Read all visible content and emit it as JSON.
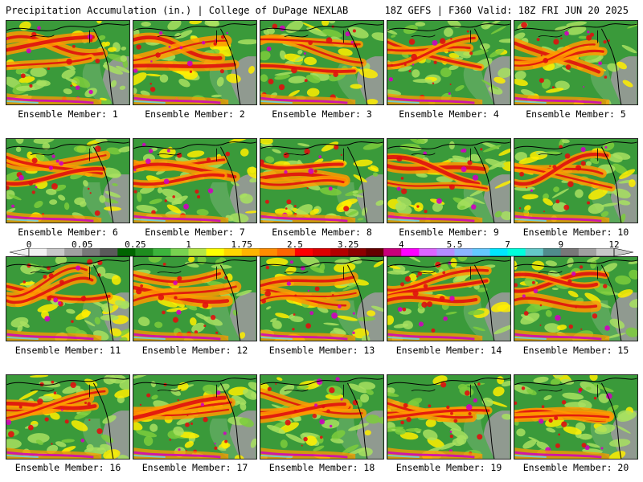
{
  "header": {
    "left": "Precipitation Accumulation (in.) | College of DuPage NEXLAB",
    "right": "18Z GEFS | F360 Valid: 18Z FRI JUN 20 2025"
  },
  "panels": [
    "Ensemble Member: 1",
    "Ensemble Member: 2",
    "Ensemble Member: 3",
    "Ensemble Member: 4",
    "Ensemble Member: 5",
    "Ensemble Member: 6",
    "Ensemble Member: 7",
    "Ensemble Member: 8",
    "Ensemble Member: 9",
    "Ensemble Member: 10",
    "Ensemble Member: 11",
    "Ensemble Member: 12",
    "Ensemble Member: 13",
    "Ensemble Member: 14",
    "Ensemble Member: 15",
    "Ensemble Member: 16",
    "Ensemble Member: 17",
    "Ensemble Member: 18",
    "Ensemble Member: 19",
    "Ensemble Member: 20"
  ],
  "colorbar": {
    "tick_labels": [
      "0",
      "0.05",
      "0.25",
      "1",
      "1.75",
      "2.5",
      "3.25",
      "4",
      "5.5",
      "7",
      "9",
      "12"
    ],
    "colors": [
      "#f2f2f2",
      "#c8c8c8",
      "#a0a0a0",
      "#787878",
      "#5a5a5a",
      "#006400",
      "#1e8c1e",
      "#3cb43c",
      "#78d250",
      "#b4e646",
      "#ffff00",
      "#ffd700",
      "#ffb400",
      "#ff8c00",
      "#ff6400",
      "#ff0000",
      "#dc0000",
      "#b40000",
      "#8c0000",
      "#640000",
      "#c8007a",
      "#ff00ff",
      "#dc64ff",
      "#b48cff",
      "#8cb4ff",
      "#64c8ff",
      "#00e6ff",
      "#00ffdc",
      "#64c8c8",
      "#508c8c",
      "#787878",
      "#a0a0a0",
      "#c8c8c8"
    ]
  },
  "map_colors": {
    "ocean": "#3a9a3a",
    "land_dry": "#9a9a9a",
    "light": "#a8e060",
    "yellow": "#ffee00",
    "orange": "#ff9a00",
    "red": "#e01010",
    "magenta": "#d000c0",
    "cyan": "#60d8ff",
    "coast": "#000000"
  }
}
